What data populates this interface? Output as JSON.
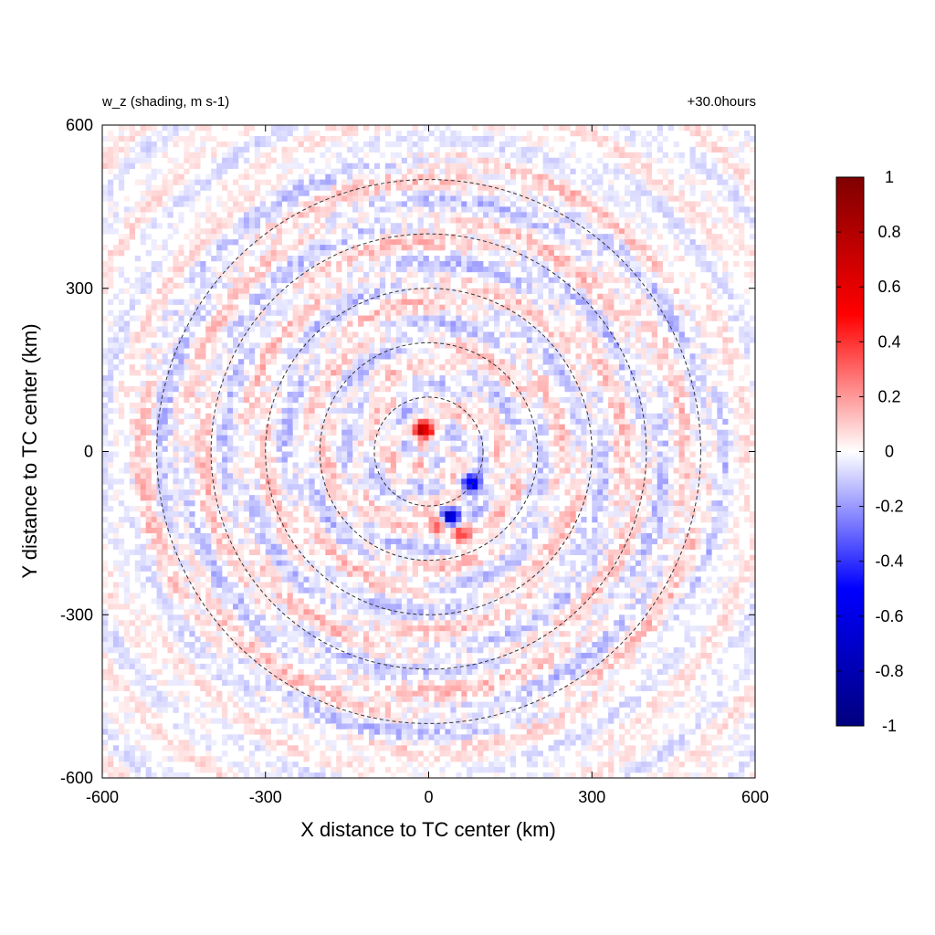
{
  "chart_data": {
    "type": "heatmap",
    "title_left": "w_z (shading, m s-1)",
    "title_right": "+30.0hours",
    "xlabel": "X distance to TC center (km)",
    "ylabel": "Y distance to TC center (km)",
    "xlim": [
      -600,
      600
    ],
    "ylim": [
      -600,
      600
    ],
    "xticks": [
      "-600",
      "-300",
      "0",
      "300",
      "600"
    ],
    "yticks": [
      "600",
      "300",
      "0",
      "-300",
      "-600"
    ],
    "xtick_values": [
      -600,
      -300,
      0,
      300,
      600
    ],
    "ytick_values": [
      600,
      300,
      0,
      -300,
      -600
    ],
    "range_rings_km": [
      100,
      200,
      300,
      400,
      500
    ],
    "ring_style": "dashed",
    "colorbar": {
      "min": -1,
      "max": 1,
      "tick_values": [
        1,
        0.8,
        0.6,
        0.4,
        0.2,
        0,
        -0.2,
        -0.4,
        -0.6,
        -0.8,
        -1
      ],
      "tick_labels": [
        "1",
        "0.8",
        "0.6",
        "0.4",
        "0.2",
        "0",
        "-0.2",
        "-0.4",
        "-0.6",
        "-0.8",
        "-1"
      ],
      "colormap": [
        "#00007f",
        "#0000ff",
        "#ffffff",
        "#ff0000",
        "#7f0000"
      ],
      "placement": "right"
    },
    "features": [
      {
        "x": -10,
        "y": 40,
        "value": 0.7
      },
      {
        "x": 35,
        "y": -120,
        "value": -0.9
      },
      {
        "x": 80,
        "y": -60,
        "value": -0.6
      },
      {
        "x": 20,
        "y": -130,
        "value": 0.6
      },
      {
        "x": 60,
        "y": -150,
        "value": 0.4
      }
    ]
  }
}
